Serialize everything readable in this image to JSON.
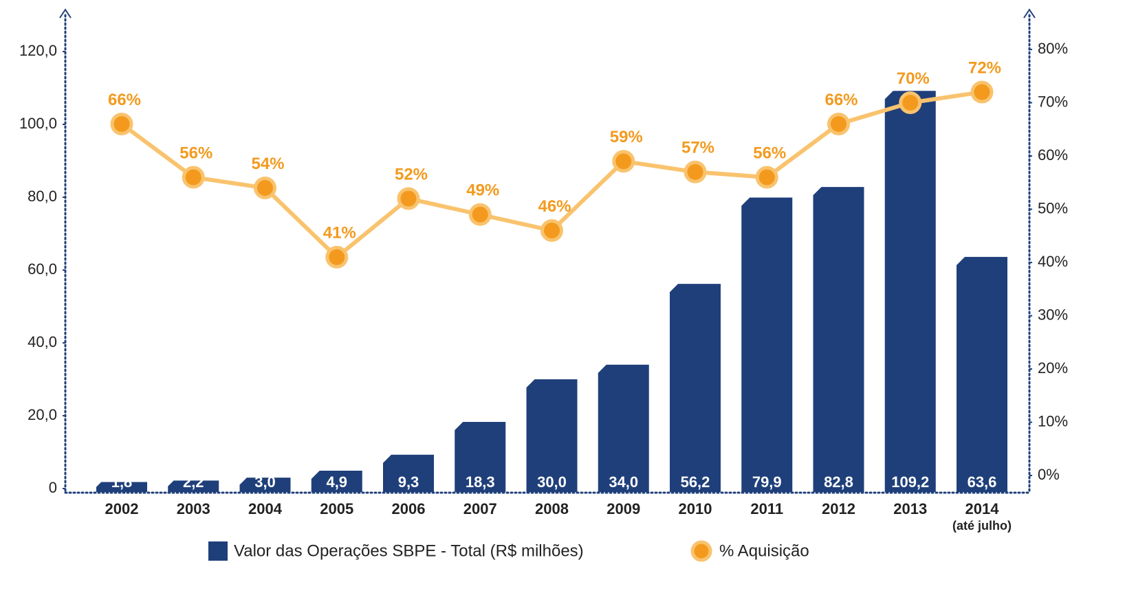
{
  "chart_data": {
    "type": "bar",
    "categories": [
      "2002",
      "2003",
      "2004",
      "2005",
      "2006",
      "2007",
      "2008",
      "2009",
      "2010",
      "2011",
      "2012",
      "2013",
      "2014"
    ],
    "x_note": "(até julho)",
    "series": [
      {
        "name": "Valor das Operações SBPE - Total (R$ milhões)",
        "color": "#1f3f7a",
        "values": [
          1.8,
          2.2,
          3.0,
          4.9,
          9.3,
          18.3,
          30.0,
          34.0,
          56.2,
          79.9,
          82.8,
          109.2,
          63.6
        ],
        "value_labels": [
          "1,8",
          "2,2",
          "3,0",
          "4,9",
          "9,3",
          "18,3",
          "30,0",
          "34,0",
          "56,2",
          "79,9",
          "82,8",
          "109,2",
          "63,6"
        ]
      },
      {
        "name": "% Aquisição",
        "type": "line",
        "axis": "y2",
        "color": "#f39a1e",
        "line_color": "#f9c36e",
        "values": [
          66,
          56,
          54,
          41,
          52,
          49,
          46,
          59,
          57,
          56,
          66,
          70,
          72
        ],
        "value_labels": [
          "66%",
          "56%",
          "54%",
          "41%",
          "52%",
          "49%",
          "46%",
          "59%",
          "57%",
          "56%",
          "66%",
          "70%",
          "72%"
        ]
      }
    ],
    "ylim": [
      0,
      120
    ],
    "yticks": [
      0,
      {
        "value": 20,
        "label": "20,0"
      },
      {
        "value": 40,
        "label": "40,0"
      },
      {
        "value": 60,
        "label": "60,0"
      },
      {
        "value": 80,
        "label": "80,0"
      },
      {
        "value": 100,
        "label": "100,0"
      },
      {
        "value": 120,
        "label": "120,0"
      }
    ],
    "y2lim": [
      0,
      80
    ],
    "y2ticks": [
      {
        "value": 0,
        "label": "0%"
      },
      {
        "value": 10,
        "label": "10%"
      },
      {
        "value": 20,
        "label": "20%"
      },
      {
        "value": 30,
        "label": "30%"
      },
      {
        "value": 40,
        "label": "40%"
      },
      {
        "value": 50,
        "label": "50%"
      },
      {
        "value": 60,
        "label": "60%"
      },
      {
        "value": 70,
        "label": "70%"
      },
      {
        "value": 80,
        "label": "80%"
      }
    ],
    "axis_color": "#1f3f7a"
  }
}
